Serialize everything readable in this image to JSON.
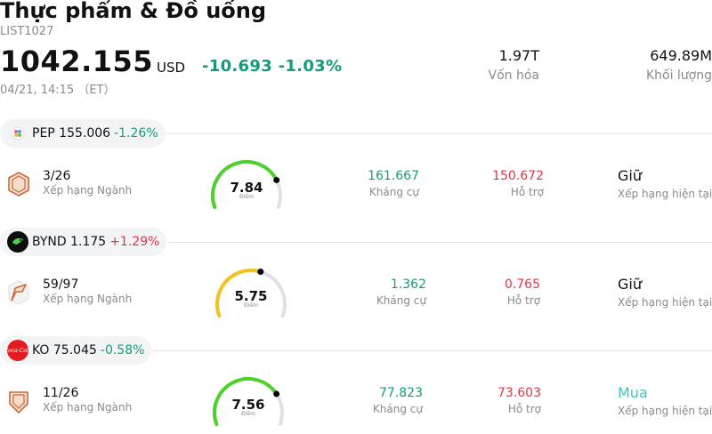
{
  "header": {
    "title": "Thực phẩm & Đồ uống",
    "code": "LIST1027",
    "price": "1042.155",
    "currency": "USD",
    "change": "-10.693 -1.03%",
    "timestamp": "04/21, 14:15 （ET）",
    "market_cap": {
      "value": "1.97T",
      "label": "Vốn hóa"
    },
    "volume": {
      "value": "649.89M",
      "label": "Khối lượng"
    }
  },
  "labels": {
    "industry_rank": "Xếp hạng Ngành",
    "score_sub": "Điểm",
    "resistance": "Kháng cự",
    "support": "Hỗ trợ",
    "current_rating": "Xếp hạng hiện tại"
  },
  "colors": {
    "up": "#169b7a",
    "down": "#e0354a",
    "gauge_green": "#4cd12a",
    "gauge_yellow": "#f5c21a",
    "gauge_track": "#dfe1e8",
    "rating_buy": "#3fc6c0"
  },
  "stocks": [
    {
      "symbol": "PEP",
      "price": "155.006",
      "change": "-1.26%",
      "change_dir": "down-green",
      "logo": "pepsico-logo-icon",
      "rank": "3/26",
      "score": "7.84",
      "score_fraction": 0.784,
      "resistance": "161.667",
      "support": "150.672",
      "rating": "Giữ",
      "rating_type": "hold"
    },
    {
      "symbol": "BYND",
      "price": "1.175",
      "change": "+1.29%",
      "change_dir": "up-red",
      "logo": "beyond-meat-logo-icon",
      "rank": "59/97",
      "score": "5.75",
      "score_fraction": 0.575,
      "resistance": "1.362",
      "support": "0.765",
      "rating": "Giữ",
      "rating_type": "hold"
    },
    {
      "symbol": "KO",
      "price": "75.045",
      "change": "-0.58%",
      "change_dir": "down-green",
      "logo": "coca-cola-logo-icon",
      "rank": "11/26",
      "score": "7.56",
      "score_fraction": 0.756,
      "resistance": "77.823",
      "support": "73.603",
      "rating": "Mua",
      "rating_type": "buy"
    }
  ]
}
